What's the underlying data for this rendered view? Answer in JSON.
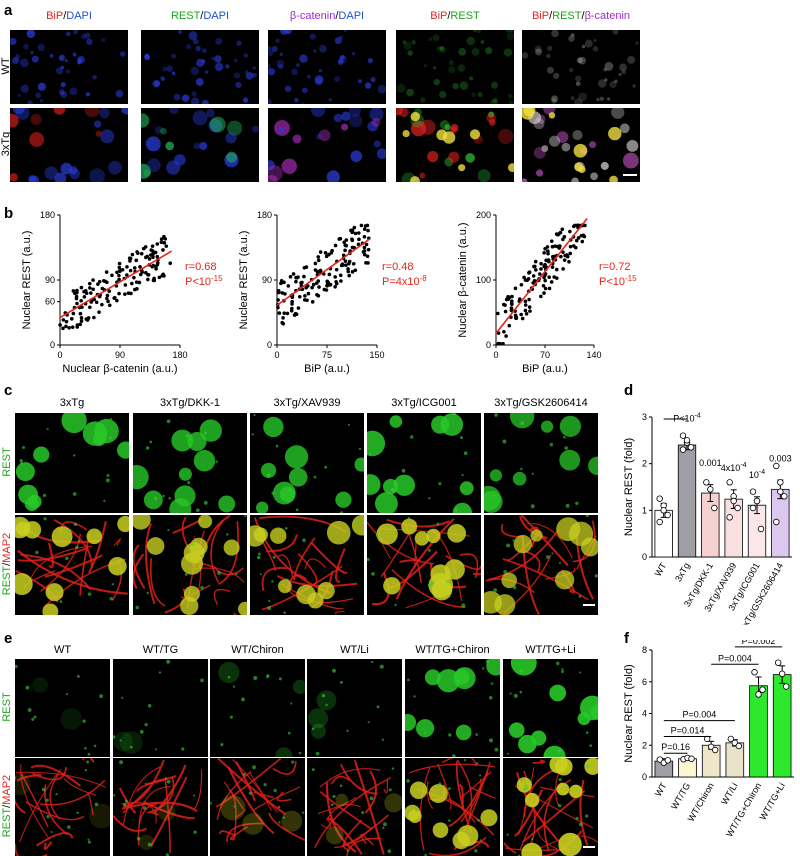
{
  "panel_a": {
    "letter": "a",
    "rows": [
      "WT",
      "3xTg"
    ],
    "columns": [
      [
        {
          "t": "BiP",
          "c": "red"
        },
        {
          "t": "/",
          "c": "black"
        },
        {
          "t": "DAPI",
          "c": "blue"
        }
      ],
      [
        {
          "t": "REST",
          "c": "green"
        },
        {
          "t": "/",
          "c": "black"
        },
        {
          "t": "DAPI",
          "c": "blue"
        }
      ],
      [
        {
          "t": "β-catenin",
          "c": "purple"
        },
        {
          "t": "/",
          "c": "black"
        },
        {
          "t": "DAPI",
          "c": "blue"
        }
      ],
      [
        {
          "t": "BiP",
          "c": "red"
        },
        {
          "t": "/",
          "c": "black"
        },
        {
          "t": "REST",
          "c": "green"
        }
      ],
      [
        {
          "t": "BiP",
          "c": "red"
        },
        {
          "t": "/",
          "c": "black"
        },
        {
          "t": "REST",
          "c": "green"
        },
        {
          "t": "/",
          "c": "black"
        },
        {
          "t": "β-catenin",
          "c": "purple"
        }
      ]
    ]
  },
  "panel_b": {
    "letter": "b",
    "plots": [
      {
        "xlabel": "Nuclear β-catenin (a.u.)",
        "ylabel": "Nuclear REST (a.u.)",
        "xticks": [
          "0",
          "90",
          "180"
        ],
        "yticks": [
          "0",
          "60",
          "90",
          "180"
        ],
        "r": "r=0.68",
        "p": "P<10"
      },
      {
        "xlabel": "BiP (a.u.)",
        "ylabel": "Nuclear REST (a.u.)",
        "xticks": [
          "0",
          "75",
          "150"
        ],
        "yticks": [
          "0",
          "90",
          "180"
        ],
        "r": "r=0.48",
        "p": "P=4x10"
      },
      {
        "xlabel": "BiP (a.u.)",
        "ylabel": "Nuclear β-catenin (a.u.)",
        "xticks": [
          "0",
          "70",
          "140"
        ],
        "yticks": [
          "0",
          "100",
          "200"
        ],
        "r": "r=0.72",
        "p": "P<10"
      }
    ],
    "p_sup": [
      "-15",
      "-8",
      "-15"
    ]
  },
  "panel_c": {
    "letter": "c",
    "columns": [
      "3xTg",
      "3xTg/DKK-1",
      "3xTg/XAV939",
      "3xTg/ICG001",
      "3xTg/GSK2606414"
    ],
    "rows": [
      [
        {
          "t": "REST",
          "c": "green"
        }
      ],
      [
        {
          "t": "REST",
          "c": "green"
        },
        {
          "t": "/",
          "c": "black"
        },
        {
          "t": "MAP2",
          "c": "red"
        }
      ]
    ]
  },
  "panel_e": {
    "letter": "e",
    "columns": [
      "WT",
      "WT/TG",
      "WT/Chiron",
      "WT/Li",
      "WT/TG+Chiron",
      "WT/TG+Li"
    ],
    "rows": [
      [
        {
          "t": "REST",
          "c": "green"
        }
      ],
      [
        {
          "t": "REST",
          "c": "green"
        },
        {
          "t": "/",
          "c": "black"
        },
        {
          "t": "MAP2",
          "c": "red"
        }
      ]
    ]
  },
  "colors": {
    "red": "#e8231b",
    "green": "#1aa51a",
    "blue": "#1f4fd6",
    "purple": "#a02bd6",
    "fit": "#e8231b"
  },
  "chart_data": [
    {
      "panel": "d",
      "type": "bar",
      "ylabel": "Nuclear REST (fold)",
      "ylim": [
        0,
        3
      ],
      "yticks": [
        0,
        1,
        2,
        3
      ],
      "categories": [
        "WT",
        "3xTg",
        "3xTg/DKK-1",
        "3xTg/XAV939",
        "3xTg/ICG001",
        "3xTg/GSK2606414"
      ],
      "values": [
        1.0,
        2.4,
        1.37,
        1.24,
        1.11,
        1.45
      ],
      "errors": [
        0.15,
        0.1,
        0.18,
        0.2,
        0.18,
        0.2
      ],
      "points": [
        [
          1.25,
          1.1,
          0.9,
          0.75,
          1.0
        ],
        [
          2.6,
          2.45,
          2.35,
          2.3,
          2.5
        ],
        [
          1.6,
          1.45,
          1.05
        ],
        [
          1.6,
          1.3,
          1.05,
          0.85,
          1.2
        ],
        [
          1.4,
          1.2,
          0.6,
          1.05,
          1.2
        ],
        [
          1.95,
          1.6,
          1.3,
          0.75,
          1.4
        ]
      ],
      "bar_colors": [
        "#ffffff",
        "#9e9ea4",
        "#f6cfd1",
        "#f8dfe0",
        "#fbe6ea",
        "#dcc8ef"
      ],
      "annotations": [
        {
          "at": 1,
          "text": "P<10",
          "sup": "-4"
        },
        {
          "at": 2,
          "text": "0.001",
          "sup": ""
        },
        {
          "at": 3,
          "text": "4x10",
          "sup": "-4"
        },
        {
          "at": 4,
          "text": "10",
          "sup": "-4"
        },
        {
          "at": 5,
          "text": "0.003",
          "sup": ""
        }
      ]
    },
    {
      "panel": "f",
      "type": "bar",
      "ylabel": "Nuclear REST (fold)",
      "ylim": [
        0,
        8
      ],
      "yticks": [
        0,
        2,
        4,
        6,
        8
      ],
      "categories": [
        "WT",
        "WT/TG",
        "WT/Chiron",
        "WT/Li",
        "WT/TG+Chiron",
        "WT/TG+Li"
      ],
      "values": [
        1.0,
        1.15,
        2.0,
        2.15,
        5.75,
        6.45
      ],
      "errors": [
        0.15,
        0.05,
        0.25,
        0.2,
        0.55,
        0.55
      ],
      "points": [
        [
          1.1,
          0.9,
          1.05
        ],
        [
          1.12,
          1.2,
          1.15
        ],
        [
          2.4,
          1.9,
          1.7
        ],
        [
          2.4,
          2.15,
          1.95
        ],
        [
          6.6,
          5.2,
          5.5
        ],
        [
          7.2,
          6.5,
          5.7
        ]
      ],
      "bar_colors": [
        "#9e9ea4",
        "#fbf7d3",
        "#efe6c9",
        "#e9e3c7",
        "#2ee82e",
        "#2ee82e"
      ],
      "brackets": [
        {
          "from": 0,
          "to": 1,
          "y": 1.5,
          "text": "P=0.16"
        },
        {
          "from": 0,
          "to": 2,
          "y": 2.55,
          "text": "P=0.014"
        },
        {
          "from": 0,
          "to": 3,
          "y": 3.55,
          "text": "P=0.004"
        },
        {
          "from": 2,
          "to": 4,
          "y": 7.1,
          "text": "P=0.004"
        },
        {
          "from": 3,
          "to": 5,
          "y": 8.2,
          "text": "P=0.002"
        }
      ]
    }
  ]
}
